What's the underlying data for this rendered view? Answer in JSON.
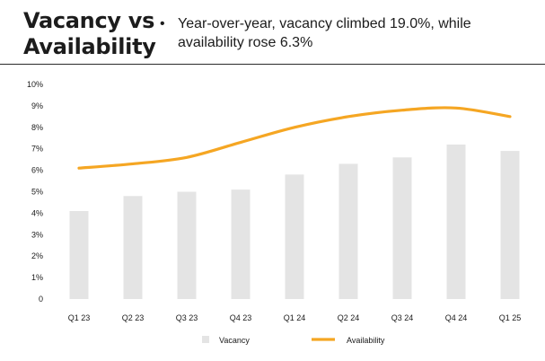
{
  "header": {
    "title_lines": [
      "Vacancy vs",
      "Availability"
    ],
    "bullet": "•",
    "note": "Year-over-year, vacancy climbed 19.0%, while availability rose 6.3%"
  },
  "colors": {
    "vacancy_bar": "#e4e4e4",
    "availability_line": "#f5a623",
    "rule": "#2b2b2b"
  },
  "chart_data": {
    "type": "bar",
    "categories": [
      "Q1 23",
      "Q2 23",
      "Q3 23",
      "Q4 23",
      "Q1 24",
      "Q2 24",
      "Q3 24",
      "Q4 24",
      "Q1 25"
    ],
    "y_ticks": [
      "0",
      "1%",
      "2%",
      "3%",
      "4%",
      "5%",
      "6%",
      "7%",
      "8%",
      "9%",
      "10%"
    ],
    "ylim": [
      0,
      10
    ],
    "grid": false,
    "legend_position": "bottom",
    "series": [
      {
        "name": "Vacancy",
        "type": "bar",
        "values": [
          4.1,
          4.8,
          5.0,
          5.1,
          5.8,
          6.3,
          6.6,
          7.2,
          6.9
        ]
      },
      {
        "name": "Availability",
        "type": "line",
        "values": [
          6.1,
          6.3,
          6.6,
          7.3,
          8.0,
          8.5,
          8.8,
          8.9,
          8.5
        ]
      }
    ]
  }
}
